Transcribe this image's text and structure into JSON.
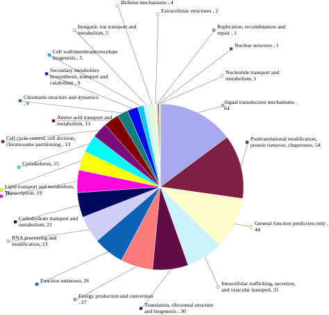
{
  "chart_data": {
    "type": "pie",
    "title": "",
    "legend": "none",
    "slices": [
      {
        "label": [
          "Signal transduction mechanisms ,",
          "64"
        ],
        "value": 64,
        "color": "#a9a9f0"
      },
      {
        "label": [
          "Posttranslational modification,",
          "protein turnover, chaperones, 54"
        ],
        "value": 54,
        "color": "#7f1f45"
      },
      {
        "label": [
          "General function prediction only ,",
          "44"
        ],
        "value": 44,
        "color": "#fdfdcc"
      },
      {
        "label": [
          "Intracellular trafficking, secretion,",
          "and vesicular transport, 31"
        ],
        "value": 31,
        "color": "#ccf2fb"
      },
      {
        "label": [
          "Translation, ribosomal structure",
          "and biogenesis , 30"
        ],
        "value": 30,
        "color": "#620c46"
      },
      {
        "label": [
          "Energy production and conversion",
          ", 27"
        ],
        "value": 27,
        "color": "#fb7a7a"
      },
      {
        "label": [
          "Function unknown, 26"
        ],
        "value": 26,
        "color": "#0d62b5"
      },
      {
        "label": [
          "RNA processing and",
          "modification, 23"
        ],
        "value": 23,
        "color": "#cecef7"
      },
      {
        "label": [
          "Carbohydrate transport and",
          "metabolism, 21"
        ],
        "value": 21,
        "color": "#00095e"
      },
      {
        "label": [
          "Transcription, 19"
        ],
        "value": 19,
        "color": "#f808dc"
      },
      {
        "label": [
          "Lipid transport and metabolism,",
          "16"
        ],
        "value": 16,
        "color": "#ffff04"
      },
      {
        "label": [
          "Cytoskeleton, 15"
        ],
        "value": 15,
        "color": "#05fafa"
      },
      {
        "label": [
          "Cell cycle control, cell division,",
          "chromosome partitioning , 13"
        ],
        "value": 13,
        "color": "#7b0c7b"
      },
      {
        "label": [
          "Amino acid transport and",
          "metabolism, 13"
        ],
        "value": 13,
        "color": "#800000"
      },
      {
        "label": [
          "Chromatin structure and dynamics",
          ", 9"
        ],
        "value": 9,
        "color": "#127d7d"
      },
      {
        "label": [
          "Secondary metabolites",
          "biosynthesis, transport and",
          "catabolism , 9"
        ],
        "value": 9,
        "color": "#0707ee"
      },
      {
        "label": [
          "Cell wall/membrane/envelope",
          "biogenesis , 5"
        ],
        "value": 5,
        "color": "#03c8f8"
      },
      {
        "label": [
          "Inorganic ion transport and",
          "metabolism, 5"
        ],
        "value": 5,
        "color": "#cdf3f7"
      },
      {
        "label": [
          "Defense mechanisms , 4"
        ],
        "value": 4,
        "color": "#dcfcd8"
      },
      {
        "label": [
          "Extracellular structures , 2"
        ],
        "value": 2,
        "color": "#fcfcb0"
      },
      {
        "label": [
          "Replication, recombination and",
          "repair , 1"
        ],
        "value": 1,
        "color": "#9a9ae8"
      },
      {
        "label": [
          "Nuclear structure , 1"
        ],
        "value": 1,
        "color": "#9a3060"
      },
      {
        "label": [
          "Nucleotide transport and",
          "metabolism, 1"
        ],
        "value": 1,
        "color": "#f4f4c4"
      }
    ]
  }
}
